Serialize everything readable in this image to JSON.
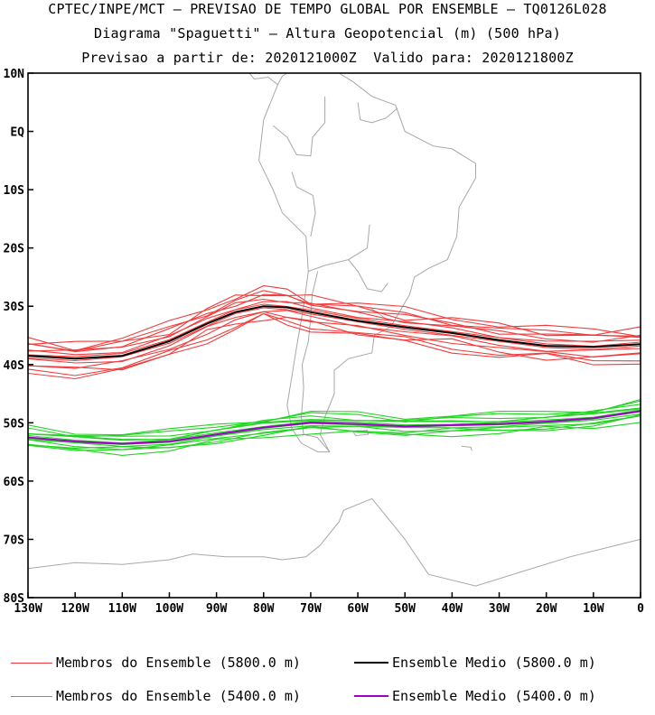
{
  "titles": {
    "line1": "CPTEC/INPE/MCT — PREVISAO DE TEMPO GLOBAL POR ENSEMBLE — TQ0126L028",
    "line2": "Diagrama \"Spaguetti\" — Altura Geopotencial (m) (500 hPa)",
    "line3": "Previsao a partir de: 2020121000Z  Valido para: 2020121800Z"
  },
  "axes": {
    "lat_labels": [
      "10N",
      "EQ",
      "10S",
      "20S",
      "30S",
      "40S",
      "50S",
      "60S",
      "70S",
      "80S"
    ],
    "lat_values": [
      10,
      0,
      -10,
      -20,
      -30,
      -40,
      -50,
      -60,
      -70,
      -80
    ],
    "lon_labels": [
      "130W",
      "120W",
      "110W",
      "100W",
      "90W",
      "80W",
      "70W",
      "60W",
      "50W",
      "40W",
      "30W",
      "20W",
      "10W",
      "0"
    ],
    "lon_values": [
      -130,
      -120,
      -110,
      -100,
      -90,
      -80,
      -70,
      -60,
      -50,
      -40,
      -30,
      -20,
      -10,
      0
    ]
  },
  "colors": {
    "member_5800": "#f03c3c",
    "mean_5800": "#000000",
    "member_5400": "#22d322",
    "mean_5400": "#a000c8",
    "coast": "#a8a8a8"
  },
  "legend": [
    {
      "label": "Membros do Ensemble (5800.0 m)",
      "color": "#f03c3c"
    },
    {
      "label": "Ensemble Medio (5800.0 m)",
      "color": "#000000"
    },
    {
      "label": "Membros do Ensemble (5400.0 m)",
      "color": "#22d322"
    },
    {
      "label": "Ensemble Medio (5400.0 m)",
      "color": "#a000c8"
    }
  ],
  "chart_data": {
    "type": "line",
    "xlim": [
      -130,
      0
    ],
    "ylim": [
      -80,
      10
    ],
    "mean_5800": [
      [
        -130,
        -38.5
      ],
      [
        -120,
        -39
      ],
      [
        -110,
        -38.5
      ],
      [
        -100,
        -36
      ],
      [
        -92,
        -33
      ],
      [
        -86,
        -31
      ],
      [
        -80,
        -30
      ],
      [
        -75,
        -30.2
      ],
      [
        -70,
        -31
      ],
      [
        -60,
        -32.5
      ],
      [
        -50,
        -33.6
      ],
      [
        -40,
        -34.6
      ],
      [
        -30,
        -35.8
      ],
      [
        -20,
        -36.8
      ],
      [
        -10,
        -37
      ],
      [
        0,
        -36.5
      ]
    ],
    "mean_5400": [
      [
        -130,
        -52.5
      ],
      [
        -120,
        -53.2
      ],
      [
        -110,
        -53.6
      ],
      [
        -100,
        -53.2
      ],
      [
        -90,
        -52
      ],
      [
        -80,
        -50.8
      ],
      [
        -70,
        -50
      ],
      [
        -60,
        -50.2
      ],
      [
        -50,
        -50.6
      ],
      [
        -40,
        -50.4
      ],
      [
        -30,
        -50.2
      ],
      [
        -20,
        -49.8
      ],
      [
        -10,
        -49.2
      ],
      [
        0,
        -48
      ]
    ],
    "members_5800_offsets": [
      -3.5,
      -2.5,
      -1.8,
      -1,
      -0.4,
      0.4,
      1,
      1.6,
      2.2,
      3,
      3.6,
      -2.9,
      2.7
    ],
    "members_5400_offsets": [
      -1.6,
      -1,
      -0.5,
      0.3,
      0.8,
      1.3,
      1.8,
      -1.3,
      0.9,
      -2,
      2.2,
      -0.2
    ]
  }
}
